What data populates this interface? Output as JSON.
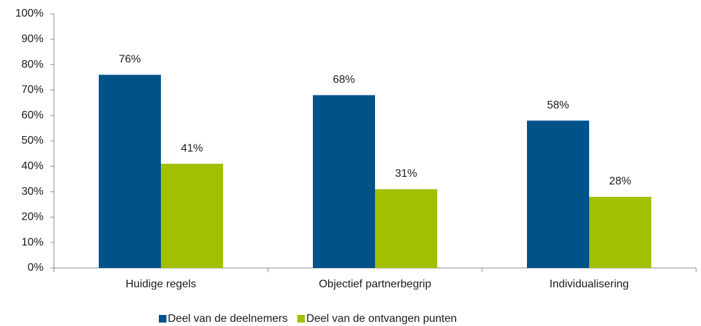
{
  "chart_data": {
    "type": "bar",
    "categories": [
      "Huidige regels",
      "Objectief partnerbegrip",
      "Individualisering"
    ],
    "series": [
      {
        "name": "Deel van de deelnemers",
        "color": "#005289",
        "values": [
          76,
          68,
          58
        ],
        "value_labels": [
          "76%",
          "68%",
          "58%"
        ]
      },
      {
        "name": "Deel van de ontvangen punten",
        "color": "#a2bf00",
        "values": [
          41,
          31,
          28
        ],
        "value_labels": [
          "41%",
          "31%",
          "28%"
        ]
      }
    ],
    "ylim": [
      0,
      100
    ],
    "yticks": [
      {
        "value": 0,
        "label": "0%"
      },
      {
        "value": 10,
        "label": "10%"
      },
      {
        "value": 20,
        "label": "20%"
      },
      {
        "value": 30,
        "label": "30%"
      },
      {
        "value": 40,
        "label": "40%"
      },
      {
        "value": 50,
        "label": "50%"
      },
      {
        "value": 60,
        "label": "60%"
      },
      {
        "value": 70,
        "label": "70%"
      },
      {
        "value": 80,
        "label": "80%"
      },
      {
        "value": 90,
        "label": "90%"
      },
      {
        "value": 100,
        "label": "100%"
      }
    ],
    "grid": false,
    "legend": "bottom"
  }
}
